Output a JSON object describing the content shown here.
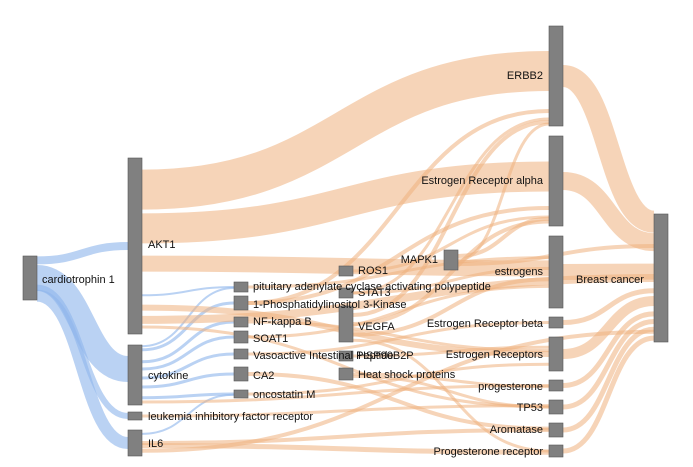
{
  "diagram": {
    "type": "sankey",
    "colors": {
      "node": "#808080",
      "node_outline": "#555555",
      "link_from_source": "#8fb7ec",
      "link_to_disease": "#eeb07e",
      "label": "#111111"
    },
    "nodes": {
      "cardiotrophin1": "cardiotrophin 1",
      "akt1": "AKT1",
      "cytokine": "cytokine",
      "lifr": "leukemia inhibitory factor receptor",
      "il6": "IL6",
      "pacap": "pituitary adenylate cyclase activating polypeptide",
      "pi3k": "1-Phosphatidylinositol 3-Kinase",
      "nfkb": "NF-kappa B",
      "soat1": "SOAT1",
      "vip": "Vasoactive Intestinal Peptide",
      "ca2": "CA2",
      "osm": "oncostatin M",
      "ros1": "ROS1",
      "stat3": "STAT3",
      "vegfa": "VEGFA",
      "hsp90b2p": "HSP90B2P",
      "hsp": "Heat shock proteins",
      "mapk1": "MAPK1",
      "erbb2": "ERBB2",
      "era": "Estrogen Receptor alpha",
      "estrogens": "estrogens",
      "erb": "Estrogen Receptor beta",
      "ers": "Estrogen Receptors",
      "progesterone": "progesterone",
      "tp53": "TP53",
      "aromatase": "Aromatase",
      "pgr": "Progesterone receptor",
      "breastcancer": "Breast cancer"
    }
  }
}
